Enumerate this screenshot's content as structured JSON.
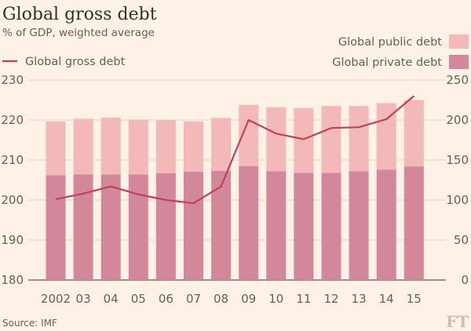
{
  "header": {
    "title": "Global gross debt",
    "subtitle": "% of GDP, weighted average"
  },
  "footer": {
    "source": "Source: IMF",
    "logo": "FT"
  },
  "colors": {
    "background": "#fff1e5",
    "public": "#f3b8b8",
    "private": "#d3879a",
    "line": "#c0405e",
    "grid": "#ddd0c5"
  },
  "chart_data": {
    "type": "bar",
    "categories": [
      "2002",
      "03",
      "04",
      "05",
      "06",
      "07",
      "08",
      "09",
      "10",
      "11",
      "12",
      "13",
      "14",
      "15"
    ],
    "series": [
      {
        "name": "Global private debt",
        "kind": "bar",
        "stack": "stacked",
        "axis": "left",
        "values": [
          206.2,
          206.4,
          206.4,
          206.4,
          206.7,
          207.1,
          207.3,
          208.5,
          207.2,
          206.8,
          206.8,
          207.2,
          207.6,
          208.4
        ]
      },
      {
        "name": "Global public debt",
        "kind": "bar",
        "stack": "stacked",
        "axis": "left",
        "values": [
          13.4,
          13.9,
          14.2,
          13.7,
          13.2,
          12.5,
          13.2,
          15.3,
          16.0,
          16.2,
          16.7,
          16.3,
          16.6,
          16.6
        ]
      },
      {
        "name": "Global gross debt",
        "kind": "line",
        "axis": "right",
        "values": [
          101,
          108,
          117,
          107,
          100,
          96,
          117,
          200,
          183,
          176,
          190,
          191,
          201,
          230
        ]
      }
    ],
    "yleft": {
      "lim": [
        180,
        230
      ],
      "ticks": [
        180,
        190,
        200,
        210,
        220,
        230
      ]
    },
    "yright": {
      "lim": [
        0,
        250
      ],
      "ticks": [
        0,
        50,
        100,
        150,
        200,
        250
      ]
    },
    "legend": {
      "items": [
        {
          "label": "Global public debt",
          "type": "swatch",
          "color": "#f3b8b8"
        },
        {
          "label": "Global private debt",
          "type": "swatch",
          "color": "#d3879a"
        },
        {
          "label": "Global gross debt",
          "type": "line",
          "color": "#c0405e"
        }
      ],
      "placement": "top"
    },
    "grid": true
  }
}
